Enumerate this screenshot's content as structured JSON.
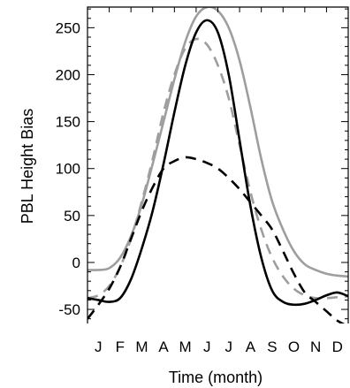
{
  "chart_data": {
    "type": "line",
    "title": "",
    "xlabel": "Time (month)",
    "ylabel": "PBL Height Bias",
    "categories": [
      "J",
      "F",
      "M",
      "A",
      "M",
      "J",
      "J",
      "A",
      "S",
      "O",
      "N",
      "D"
    ],
    "x": [
      0.5,
      1.5,
      2.5,
      3.5,
      4.5,
      5.5,
      6.5,
      7.5,
      8.5,
      9.5,
      10.5,
      11.5
    ],
    "xlim": [
      0,
      12
    ],
    "ylim": [
      -65,
      272
    ],
    "yticks": [
      -50,
      0,
      50,
      100,
      150,
      200,
      250
    ],
    "grid": false,
    "legend": "none",
    "series": [
      {
        "color": "#000000",
        "dash": "solid",
        "x": [
          0,
          0.5,
          1,
          1.5,
          2,
          2.5,
          3,
          3.5,
          4,
          4.5,
          5,
          5.5,
          6,
          6.5,
          7,
          7.5,
          8,
          8.5,
          9,
          9.5,
          10,
          10.5,
          11,
          11.5,
          12
        ],
        "values": [
          -38,
          -40,
          -42,
          -38,
          -18,
          15,
          55,
          105,
          160,
          210,
          245,
          258,
          245,
          200,
          130,
          60,
          5,
          -30,
          -42,
          -45,
          -44,
          -40,
          -35,
          -32,
          -36
        ]
      },
      {
        "color": "#000000",
        "dash": "dashed",
        "x": [
          0,
          0.5,
          1,
          1.5,
          2,
          2.5,
          3,
          3.5,
          4,
          4.5,
          5,
          5.5,
          6,
          6.5,
          7,
          7.5,
          8,
          8.5,
          9,
          9.5,
          10,
          10.5,
          11,
          11.5,
          12
        ],
        "values": [
          -60,
          -45,
          -28,
          -5,
          25,
          55,
          80,
          100,
          108,
          112,
          110,
          106,
          100,
          90,
          78,
          64,
          50,
          35,
          12,
          -12,
          -32,
          -42,
          -52,
          -62,
          -68
        ]
      },
      {
        "color": "#9e9e9e",
        "dash": "solid",
        "x": [
          0,
          0.5,
          1,
          1.5,
          2,
          2.5,
          3,
          3.5,
          4,
          4.5,
          5,
          5.5,
          6,
          6.5,
          7,
          7.5,
          8,
          8.5,
          9,
          9.5,
          10,
          10.5,
          11,
          11.5,
          12
        ],
        "values": [
          -8,
          -8,
          -6,
          5,
          28,
          62,
          105,
          150,
          195,
          235,
          262,
          272,
          268,
          250,
          215,
          165,
          110,
          65,
          35,
          12,
          -2,
          -8,
          -12,
          -14,
          -15
        ]
      },
      {
        "color": "#9e9e9e",
        "dash": "dashed",
        "x": [
          0,
          0.5,
          1,
          1.5,
          2,
          2.5,
          3,
          3.5,
          4,
          4.5,
          5,
          5.5,
          6,
          6.5,
          7,
          7.5,
          8,
          8.5,
          9,
          9.5,
          10,
          10.5,
          11,
          11.5,
          12
        ],
        "values": [
          -38,
          -35,
          -25,
          -5,
          25,
          65,
          110,
          160,
          200,
          228,
          238,
          232,
          210,
          175,
          125,
          75,
          35,
          5,
          -15,
          -28,
          -35,
          -38,
          -38,
          -37,
          -36
        ]
      }
    ]
  }
}
